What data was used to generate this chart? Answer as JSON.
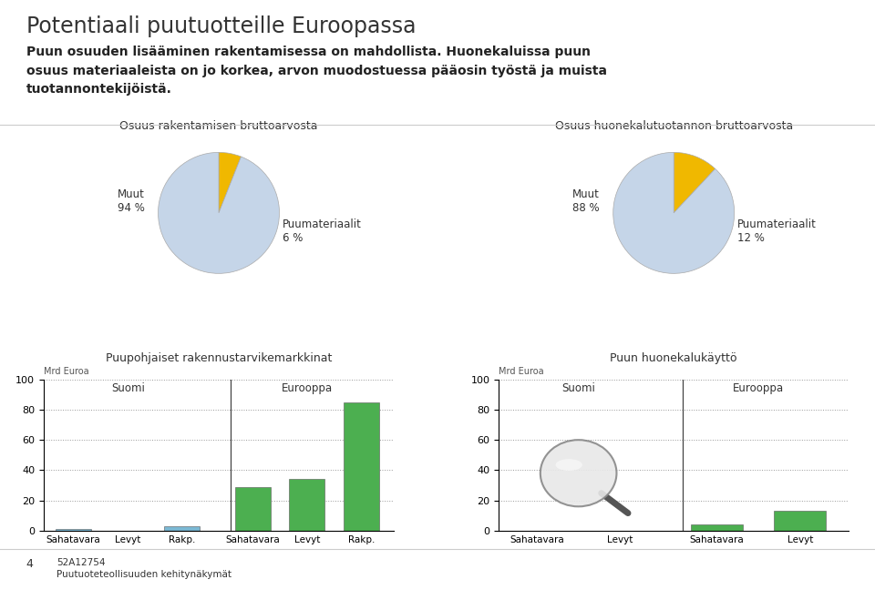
{
  "title": "Potentiaali puutuotteille Euroopassa",
  "subtitle_bold": "Puun osuuden lisääminen rakentamisessa on mahdollista.",
  "subtitle_normal": " Huonekaluissa puun osuus materiaaleista on jo korkea, arvon muodostuessa pääosin työstä ja muista tuotannontekijöistä.",
  "pie1_title": "Osuus rakentamisen bruttoarvosta",
  "pie1_values": [
    6,
    94
  ],
  "pie1_colors": [
    "#f0b800",
    "#c5d5e8"
  ],
  "pie1_muut_label": "Muut\n94 %",
  "pie1_puu_label": "Puumateriaalit\n6 %",
  "pie2_title": "Osuus huonekalutuotannon bruttoarvosta",
  "pie2_values": [
    12,
    88
  ],
  "pie2_colors": [
    "#f0b800",
    "#c5d5e8"
  ],
  "pie2_muut_label": "Muut\n88 %",
  "pie2_puu_label": "Puumateriaalit\n12 %",
  "bar1_title": "Puupohjaiset rakennustarvikemarkkinat",
  "bar1_ylabel": "Mrd Euroa",
  "bar1_suomi_labels": [
    "Sahatavara",
    "Levyt",
    "Rakp."
  ],
  "bar1_eurooppa_labels": [
    "Sahatavara",
    "Levyt",
    "Rakp."
  ],
  "bar1_suomi_values": [
    1,
    0,
    3
  ],
  "bar1_eurooppa_values": [
    29,
    34,
    85
  ],
  "bar2_title": "Puun huonekalukäyttö",
  "bar2_ylabel": "Mrd Euroa",
  "bar2_suomi_labels": [
    "Sahatavara",
    "Levyt"
  ],
  "bar2_eurooppa_labels": [
    "Sahatavara",
    "Levyt"
  ],
  "bar2_suomi_values": [
    0,
    0
  ],
  "bar2_eurooppa_values": [
    4,
    13
  ],
  "bar_green_color": "#4caf50",
  "bar_blue_color": "#7ab8d4",
  "ylim": [
    0,
    100
  ],
  "yticks": [
    0,
    20,
    40,
    60,
    80,
    100
  ],
  "background_color": "#ffffff",
  "title_color": "#3b5998",
  "footer_number": "4",
  "footer_code": "52A12754",
  "footer_text": "Puutuoteteollisuuden kehitynäkymät"
}
